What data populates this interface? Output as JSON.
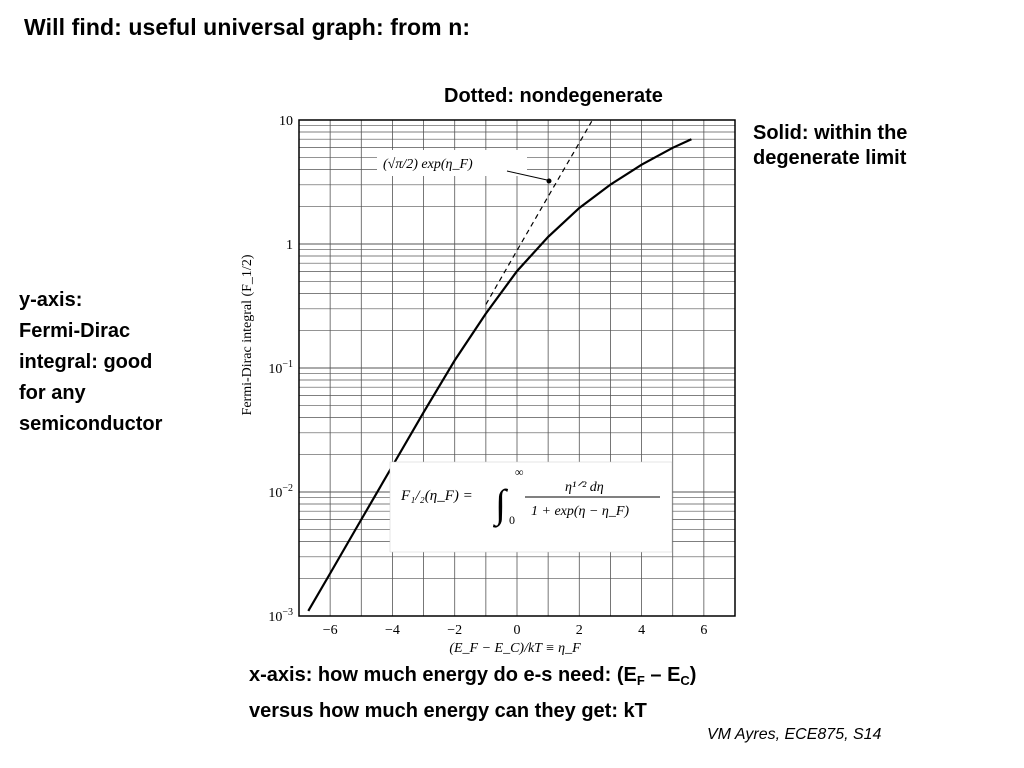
{
  "slide": {
    "title": "Will find: useful universal graph: from n:",
    "dotted_note": "Dotted: nondegenerate",
    "solid_note_line1": "Solid: within the",
    "solid_note_line2": "degenerate limit",
    "yaxis_note_lines": [
      "y-axis:",
      "Fermi-Dirac",
      "integral: good",
      "for any",
      "semiconductor"
    ],
    "xaxis_note": {
      "pre": "x-axis: how much energy do e-s need: (E",
      "sub1": "F",
      "mid": " – E",
      "sub2": "C",
      "post": ")",
      "line2": "versus how much energy can they get: kT"
    },
    "footer": "VM Ayres, ECE875, S14"
  },
  "chart_data": {
    "type": "line",
    "xlabel": "(E_F − E_C)/kT ≡ η_F",
    "ylabel": "Fermi-Dirac integral (F_1/2)",
    "xlim": [
      -7,
      7
    ],
    "ylim": [
      0.001,
      10
    ],
    "yscale": "log",
    "x_ticks": [
      -6,
      -4,
      -2,
      0,
      2,
      4,
      6
    ],
    "x_tick_labels": [
      "−6",
      "−4",
      "−2",
      "0",
      "2",
      "4",
      "6"
    ],
    "y_ticks": [
      0.001,
      0.01,
      0.1,
      1,
      10
    ],
    "y_tick_labels": [
      {
        "base": "10",
        "exp": "−3"
      },
      {
        "base": "10",
        "exp": "−2"
      },
      {
        "base": "10",
        "exp": "−1"
      },
      {
        "base": "1",
        "exp": ""
      },
      {
        "base": "10",
        "exp": ""
      }
    ],
    "grid": true,
    "series": [
      {
        "style": "solid",
        "x": [
          -6.7,
          -6,
          -5,
          -4,
          -3,
          -2,
          -1,
          0,
          1,
          2,
          3,
          4,
          5,
          5.6
        ],
        "y": [
          0.0011,
          0.0022,
          0.006,
          0.0162,
          0.0439,
          0.1152,
          0.275,
          0.6049,
          1.141,
          1.951,
          3.013,
          4.36,
          5.97,
          7.0
        ]
      },
      {
        "style": "dotted",
        "x": [
          -1,
          0,
          1,
          2,
          2.4
        ],
        "y": [
          0.326,
          0.886,
          2.41,
          6.55,
          9.77
        ]
      }
    ],
    "annotations": {
      "curve_label": "(√π/2) exp(η_F)",
      "formula_lhs": "F₁/₂(η_F) =",
      "formula_upper_limit": "∞",
      "formula_lower_limit": "0",
      "formula_numerator": "η¹ᐟ² dη",
      "formula_denominator": "1 + exp(η − η_F)"
    }
  }
}
